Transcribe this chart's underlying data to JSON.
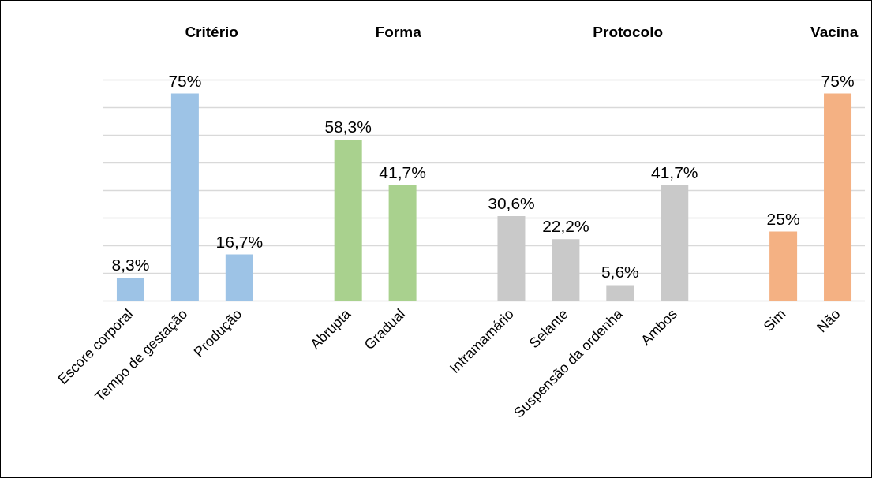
{
  "chart_data": {
    "type": "bar",
    "categories": [
      "Escore corporal",
      "Tempo de gestação",
      "Produção",
      null,
      "Abrupta",
      "Gradual",
      null,
      "Intramamário",
      "Selante",
      "Suspensão da ordenha",
      "Ambos",
      null,
      "Sim",
      "Não"
    ],
    "values": [
      8.3,
      75,
      16.7,
      null,
      58.3,
      41.7,
      null,
      30.6,
      22.2,
      5.6,
      41.7,
      null,
      25,
      75
    ],
    "colors": [
      "#9dc3e6",
      "#9dc3e6",
      "#9dc3e6",
      null,
      "#a9d18e",
      "#a9d18e",
      null,
      "#c9c9c9",
      "#c9c9c9",
      "#c9c9c9",
      "#c9c9c9",
      null,
      "#f4b183",
      "#f4b183"
    ],
    "value_labels": [
      "8,3%",
      "75%",
      "16,7%",
      null,
      "58,3%",
      "41,7%",
      null,
      "30,6%",
      "22,2%",
      "5,6%",
      "41,7%",
      null,
      "25%",
      "75%"
    ],
    "annotations": [
      "Critério",
      "Forma",
      "Protocolo",
      "Vacina"
    ],
    "ylim": [
      0,
      80
    ],
    "yticks": [
      {
        "value": 0,
        "label": null
      },
      {
        "value": 10,
        "label": null
      },
      {
        "value": 20,
        "label": null
      },
      {
        "value": 30,
        "label": null
      },
      {
        "value": 40,
        "label": null
      },
      {
        "value": 50,
        "label": null
      },
      {
        "value": 60,
        "label": null
      },
      {
        "value": 70,
        "label": null
      },
      {
        "value": 80,
        "label": null
      }
    ],
    "tick_labels": "x",
    "grid": "y"
  }
}
